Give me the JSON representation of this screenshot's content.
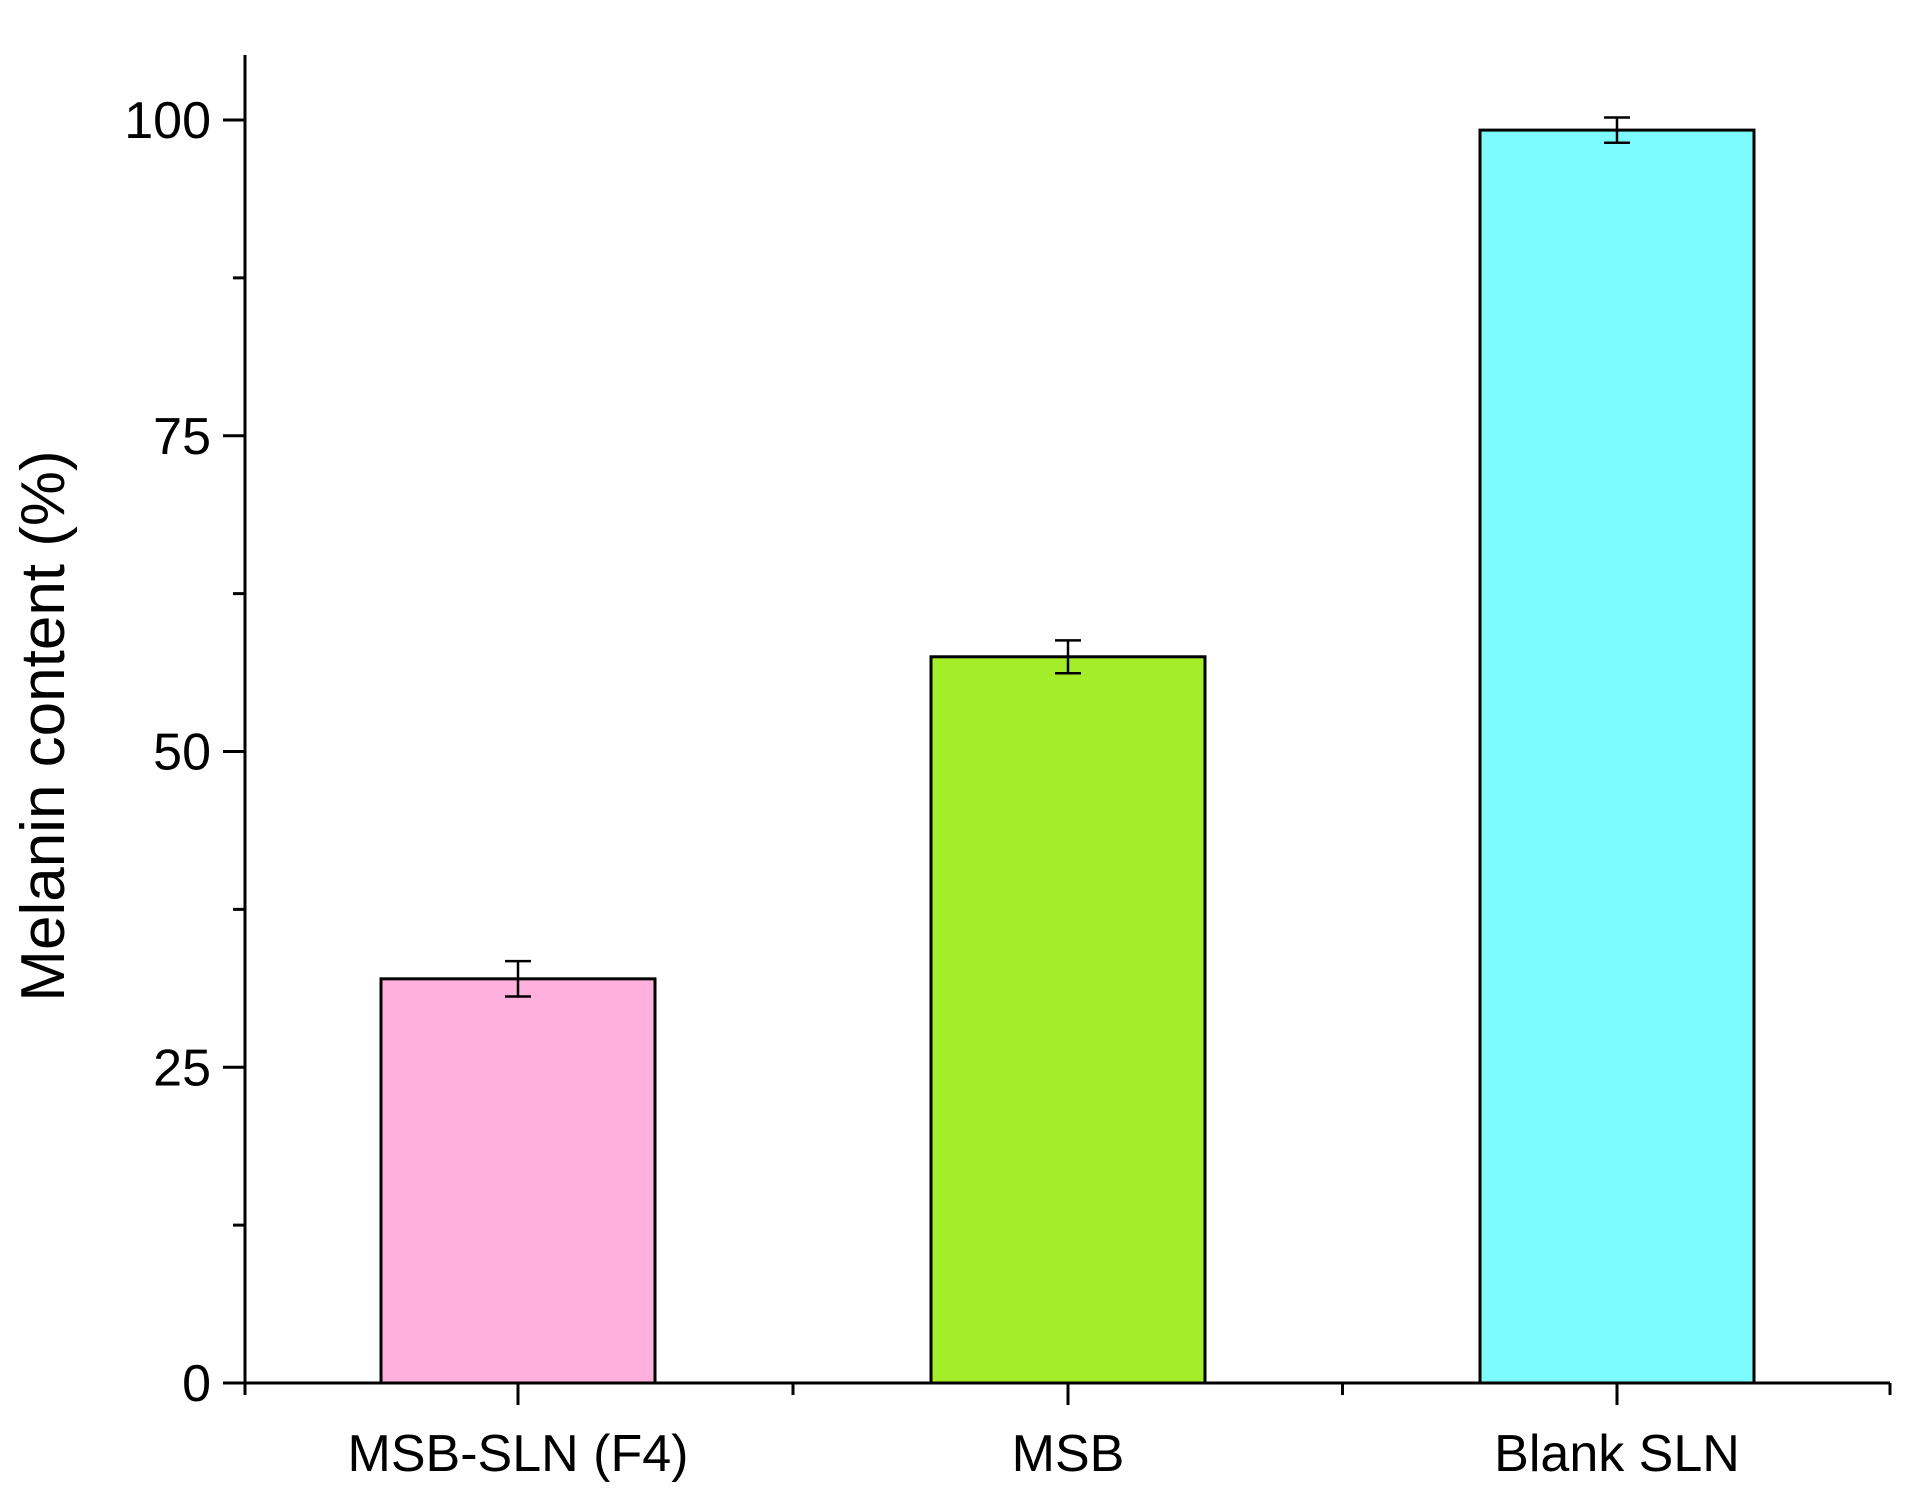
{
  "chart_data": {
    "type": "bar",
    "categories": [
      "MSB-SLN (F4)",
      "MSB",
      "Blank SLN"
    ],
    "values": [
      32,
      57.5,
      99.2
    ],
    "errors": [
      1.4,
      1.3,
      1.0
    ],
    "colors": [
      "#FFB0DC",
      "#A3EE28",
      "#7CFCFC"
    ],
    "title": "",
    "xlabel": "",
    "ylabel": "Melanin content (%)",
    "ylim": [
      0,
      105
    ],
    "yticks_major": [
      0,
      25,
      50,
      75,
      100
    ],
    "ytick_labels": [
      "0",
      "25",
      "50",
      "75",
      "100"
    ],
    "yticks_minor": [
      12.5,
      37.5,
      62.5,
      87.5
    ],
    "grid": false,
    "legend": "none"
  }
}
